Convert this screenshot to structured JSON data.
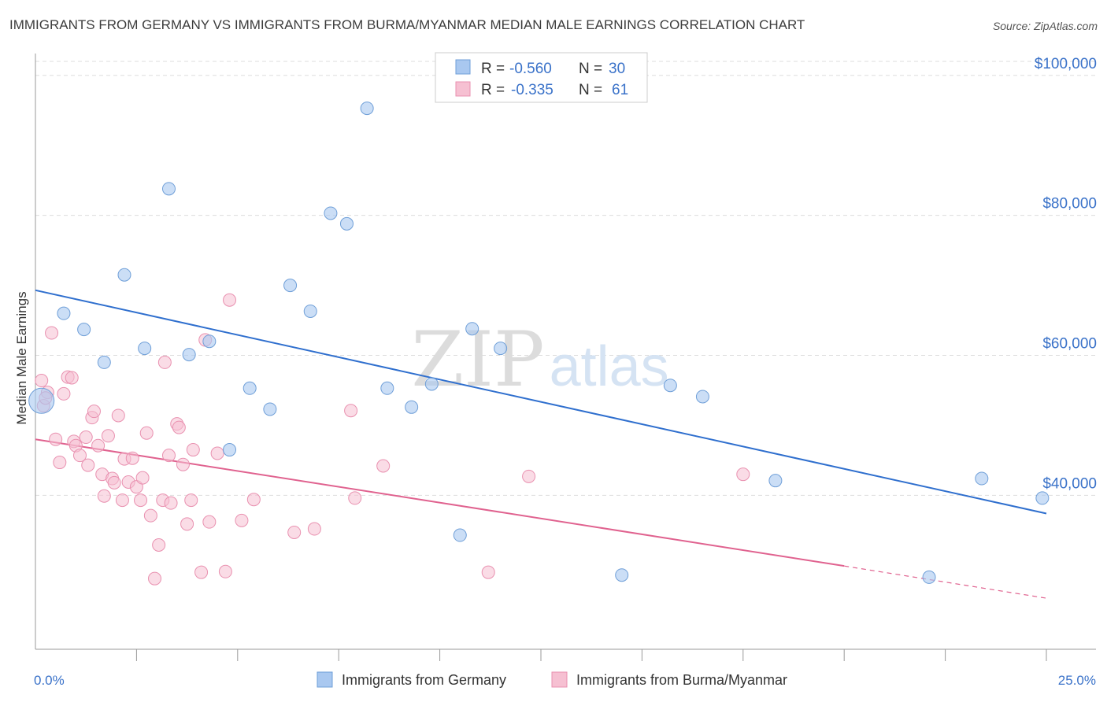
{
  "header": {
    "title": "IMMIGRANTS FROM GERMANY VS IMMIGRANTS FROM BURMA/MYANMAR MEDIAN MALE EARNINGS CORRELATION CHART",
    "source": "Source: ZipAtlas.com"
  },
  "watermark": {
    "part1": "ZIP",
    "part2": "atlas"
  },
  "colors": {
    "germany_fill": "#a9c8f0",
    "germany_stroke": "#6f9fd8",
    "germany_line": "#2f6fce",
    "burma_fill": "#f6c0d2",
    "burma_stroke": "#e991b0",
    "burma_line": "#e0628f",
    "axis_text": "#3a72c9",
    "grid": "#dddddd"
  },
  "legend": {
    "rows": [
      {
        "r_label": "R =",
        "r_value": "-0.560",
        "n_label": "N =",
        "n_value": "30"
      },
      {
        "r_label": "R =",
        "r_value": "-0.335",
        "n_label": "N =",
        "n_value": "61"
      }
    ]
  },
  "chart_data": {
    "type": "scatter",
    "title": "IMMIGRANTS FROM GERMANY VS IMMIGRANTS FROM BURMA/MYANMAR MEDIAN MALE EARNINGS CORRELATION CHART",
    "xlabel": "",
    "ylabel": "Median Male Earnings",
    "xlim": [
      0,
      25
    ],
    "ylim": [
      18000,
      102000
    ],
    "x_tick_labels": [
      "0.0%",
      "25.0%"
    ],
    "y_ticks": [
      40000,
      60000,
      80000,
      100000
    ],
    "y_tick_labels": [
      "$40,000",
      "$60,000",
      "$80,000",
      "$100,000"
    ],
    "grid": true,
    "legend_position": "top-center",
    "series": [
      {
        "name": "Immigrants from Germany",
        "r": -0.56,
        "n": 30,
        "trend": {
          "x": [
            0,
            25
          ],
          "y": [
            69300,
            37400
          ]
        },
        "points": [
          {
            "x": 0.15,
            "y": 53500,
            "big": true
          },
          {
            "x": 0.7,
            "y": 66000
          },
          {
            "x": 1.2,
            "y": 63700
          },
          {
            "x": 1.7,
            "y": 59000
          },
          {
            "x": 2.2,
            "y": 71500
          },
          {
            "x": 2.7,
            "y": 61000
          },
          {
            "x": 3.3,
            "y": 83800
          },
          {
            "x": 3.8,
            "y": 60100
          },
          {
            "x": 4.3,
            "y": 62000
          },
          {
            "x": 4.8,
            "y": 46500
          },
          {
            "x": 5.3,
            "y": 55300
          },
          {
            "x": 5.8,
            "y": 52300
          },
          {
            "x": 6.3,
            "y": 70000
          },
          {
            "x": 6.8,
            "y": 66300
          },
          {
            "x": 7.3,
            "y": 80300
          },
          {
            "x": 7.7,
            "y": 78800
          },
          {
            "x": 8.2,
            "y": 95300
          },
          {
            "x": 8.7,
            "y": 55300
          },
          {
            "x": 9.3,
            "y": 52600
          },
          {
            "x": 9.8,
            "y": 55900
          },
          {
            "x": 10.5,
            "y": 34300
          },
          {
            "x": 10.8,
            "y": 63800
          },
          {
            "x": 11.5,
            "y": 61000
          },
          {
            "x": 14.5,
            "y": 28600
          },
          {
            "x": 15.7,
            "y": 55700
          },
          {
            "x": 16.5,
            "y": 54100
          },
          {
            "x": 18.3,
            "y": 42100
          },
          {
            "x": 22.1,
            "y": 28300
          },
          {
            "x": 23.4,
            "y": 42400
          },
          {
            "x": 24.9,
            "y": 39600
          }
        ]
      },
      {
        "name": "Immigrants from Burma/Myanmar",
        "r": -0.335,
        "n": 61,
        "trend": {
          "x": [
            0,
            20
          ],
          "y": [
            48000,
            29900
          ]
        },
        "trend_dashed": {
          "x": [
            20,
            25
          ],
          "y": [
            29900,
            25300
          ]
        },
        "points": [
          {
            "x": 0.15,
            "y": 56400
          },
          {
            "x": 0.2,
            "y": 52800
          },
          {
            "x": 0.3,
            "y": 54700
          },
          {
            "x": 0.4,
            "y": 63200
          },
          {
            "x": 0.5,
            "y": 48000
          },
          {
            "x": 0.6,
            "y": 44700
          },
          {
            "x": 0.7,
            "y": 54500
          },
          {
            "x": 0.8,
            "y": 56900
          },
          {
            "x": 0.9,
            "y": 56800
          },
          {
            "x": 0.95,
            "y": 47700
          },
          {
            "x": 1.0,
            "y": 47100
          },
          {
            "x": 1.1,
            "y": 45700
          },
          {
            "x": 1.25,
            "y": 48300
          },
          {
            "x": 1.3,
            "y": 44300
          },
          {
            "x": 1.4,
            "y": 51100
          },
          {
            "x": 1.45,
            "y": 52000
          },
          {
            "x": 1.55,
            "y": 47100
          },
          {
            "x": 1.65,
            "y": 43000
          },
          {
            "x": 1.7,
            "y": 39900
          },
          {
            "x": 1.8,
            "y": 48500
          },
          {
            "x": 1.9,
            "y": 42400
          },
          {
            "x": 1.95,
            "y": 41800
          },
          {
            "x": 2.05,
            "y": 51400
          },
          {
            "x": 2.15,
            "y": 39300
          },
          {
            "x": 2.2,
            "y": 45200
          },
          {
            "x": 2.3,
            "y": 41900
          },
          {
            "x": 2.4,
            "y": 45300
          },
          {
            "x": 2.5,
            "y": 41200
          },
          {
            "x": 2.6,
            "y": 39300
          },
          {
            "x": 2.65,
            "y": 42500
          },
          {
            "x": 2.75,
            "y": 48900
          },
          {
            "x": 2.85,
            "y": 37100
          },
          {
            "x": 2.95,
            "y": 28100
          },
          {
            "x": 3.05,
            "y": 32900
          },
          {
            "x": 3.15,
            "y": 39300
          },
          {
            "x": 3.2,
            "y": 59000
          },
          {
            "x": 3.3,
            "y": 45700
          },
          {
            "x": 3.35,
            "y": 38900
          },
          {
            "x": 3.5,
            "y": 50200
          },
          {
            "x": 3.55,
            "y": 49700
          },
          {
            "x": 3.65,
            "y": 44400
          },
          {
            "x": 3.75,
            "y": 35900
          },
          {
            "x": 3.85,
            "y": 39300
          },
          {
            "x": 3.9,
            "y": 46500
          },
          {
            "x": 4.1,
            "y": 29000
          },
          {
            "x": 4.2,
            "y": 62200
          },
          {
            "x": 4.3,
            "y": 36200
          },
          {
            "x": 4.5,
            "y": 46000
          },
          {
            "x": 4.7,
            "y": 29100
          },
          {
            "x": 4.8,
            "y": 67900
          },
          {
            "x": 5.1,
            "y": 36400
          },
          {
            "x": 5.4,
            "y": 39400
          },
          {
            "x": 6.4,
            "y": 34700
          },
          {
            "x": 6.9,
            "y": 35200
          },
          {
            "x": 7.8,
            "y": 52100
          },
          {
            "x": 7.9,
            "y": 39600
          },
          {
            "x": 8.6,
            "y": 44200
          },
          {
            "x": 11.2,
            "y": 29000
          },
          {
            "x": 12.2,
            "y": 42700
          },
          {
            "x": 17.5,
            "y": 43000
          },
          {
            "x": 0.25,
            "y": 53900
          }
        ]
      }
    ]
  }
}
